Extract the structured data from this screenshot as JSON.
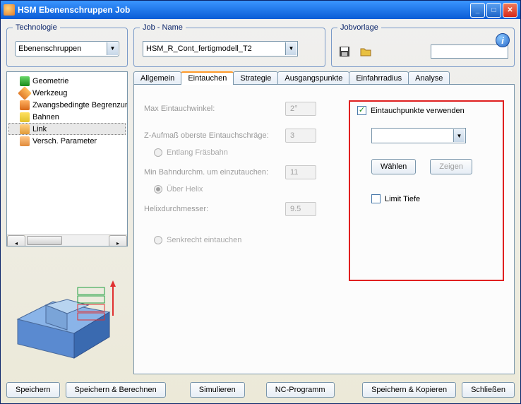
{
  "window": {
    "title": "HSM Ebenenschruppen Job"
  },
  "groups": {
    "technologie": "Technologie",
    "jobname": "Job - Name",
    "jobvorlage": "Jobvorlage"
  },
  "technologie": {
    "value": "Ebenenschruppen"
  },
  "jobname": {
    "value": "HSM_R_Cont_fertigmodell_T2"
  },
  "tree": {
    "items": [
      {
        "label": "Geometrie",
        "icon": "green"
      },
      {
        "label": "Werkzeug",
        "icon": "orange"
      },
      {
        "label": "Zwangsbedingte Begrenzung",
        "icon": "orange2"
      },
      {
        "label": "Bahnen",
        "icon": "yellow"
      },
      {
        "label": "Link",
        "icon": "link",
        "selected": true
      },
      {
        "label": "Versch. Parameter",
        "icon": "misc"
      }
    ]
  },
  "tabs": {
    "items": [
      {
        "label": "Allgemein"
      },
      {
        "label": "Eintauchen",
        "active": true
      },
      {
        "label": "Strategie"
      },
      {
        "label": "Ausgangspunkte"
      },
      {
        "label": "Einfahrradius"
      },
      {
        "label": "Analyse"
      }
    ]
  },
  "form": {
    "maxEintauchwinkel": {
      "label": "Max Eintauchwinkel:",
      "value": "2°"
    },
    "zAufmass": {
      "label": "Z-Aufmaß oberste Eintauchschräge:",
      "value": "3"
    },
    "entlang": {
      "label": "Entlang Fräsbahn"
    },
    "minBahndurchm": {
      "label": "Min Bahndurchm. um einzutauchen:",
      "value": "11"
    },
    "helix": {
      "label": "Über Helix"
    },
    "helixdurchmesser": {
      "label": "Helixdurchmesser:",
      "value": "9.5"
    },
    "senkrecht": {
      "label": "Senkrecht eintauchen"
    }
  },
  "redbox": {
    "verwenden": "Eintauchpunkte verwenden",
    "waehlen": "Wählen",
    "zeigen": "Zeigen",
    "limitTiefe": "Limit Tiefe"
  },
  "buttons": {
    "speichern": "Speichern",
    "speichernBerechnen": "Speichern & Berechnen",
    "simulieren": "Simulieren",
    "ncProgramm": "NC-Programm",
    "speichernKopieren": "Speichern & Kopieren",
    "schliessen": "Schließen"
  },
  "colors": {
    "titlebar_start": "#3a95ff",
    "titlebar_end": "#0a5cd6",
    "border": "#7a96ab",
    "legend": "#0a246a",
    "tab_active_top": "#ff9a2a",
    "redbox_border": "#e02020",
    "disabled_text": "#a0a0a0",
    "preview_blue1": "#8ab4e8",
    "preview_blue2": "#5a8ad0",
    "preview_blue3": "#3a6ab0",
    "preview_red": "#e03030",
    "preview_green": "#20a040"
  }
}
